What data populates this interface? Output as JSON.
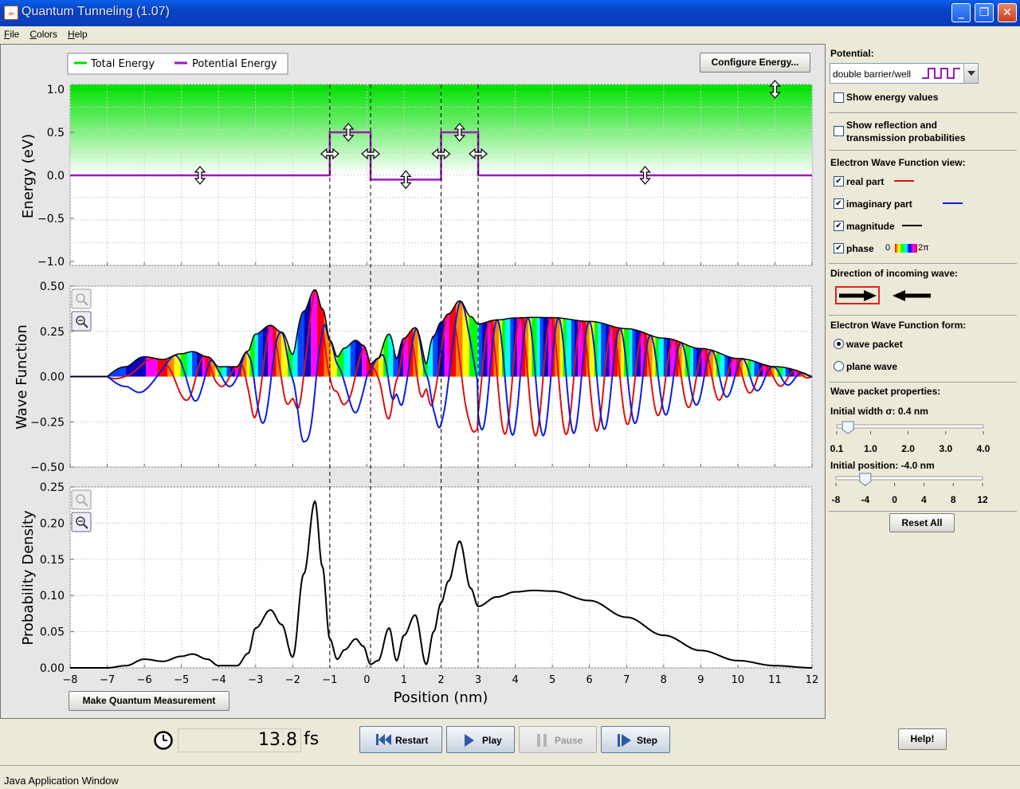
{
  "window": {
    "title": "Quantum Tunneling (1.07)"
  },
  "menu": {
    "items": [
      "File",
      "Colors",
      "Help"
    ]
  },
  "legend": {
    "total_energy": "Total Energy",
    "potential_energy": "Potential Energy"
  },
  "buttons": {
    "configure_energy": "Configure Energy...",
    "make_measurement": "Make Quantum Measurement",
    "reset_all": "Reset All",
    "restart": "Restart",
    "play": "Play",
    "pause": "Pause",
    "step": "Step",
    "help": "Help!"
  },
  "clock": {
    "value": "13.8",
    "unit": "fs"
  },
  "panel": {
    "potential_label": "Potential:",
    "potential_selected": "double barrier/well",
    "show_energy_values": "Show energy values",
    "show_reflection_1": "Show reflection and",
    "show_reflection_2": "transmission probabilities",
    "wf_view_label": "Electron Wave Function view:",
    "real_part": "real part",
    "imaginary_part": "imaginary part",
    "magnitude": "magnitude",
    "phase": "phase",
    "phase_min": "0",
    "phase_max": "2π",
    "direction_label": "Direction of incoming wave:",
    "wf_form_label": "Electron Wave Function form:",
    "wave_packet": "wave packet",
    "plane_wave": "plane wave",
    "packet_props_label": "Wave packet properties:",
    "initial_width_label": "Initial width σ: 0.4 nm",
    "width_ticks": [
      "0.1",
      "1.0",
      "2.0",
      "3.0",
      "4.0"
    ],
    "initial_position_label": "Initial position: -4.0 nm",
    "position_ticks": [
      "-8",
      "-4",
      "0",
      "4",
      "8",
      "12"
    ],
    "width_value": 0.4,
    "position_value": -4.0
  },
  "checks": {
    "show_energy_values": false,
    "show_reflection": false,
    "real_part": true,
    "imaginary_part": true,
    "magnitude": true,
    "phase": true
  },
  "colors": {
    "real": "#e01010",
    "imaginary": "#0a1ee0",
    "magnitude": "#000000",
    "potential": "#9a1bb8",
    "total_energy": "#00e000"
  },
  "status": {
    "text": "Java Application Window"
  },
  "chart_data": [
    {
      "type": "line",
      "ylabel": "Energy (eV)",
      "xlim": [
        -8,
        12
      ],
      "ylim": [
        -1.0,
        1.0
      ],
      "yticks": [
        "1.0",
        "0.5",
        "0.0",
        "−0.5",
        "−1.0"
      ],
      "series": [
        {
          "name": "Total Energy",
          "x": [
            -8,
            12
          ],
          "y": [
            1.0,
            1.0
          ]
        },
        {
          "name": "Potential Energy",
          "x": [
            -8,
            -1,
            -1,
            0.1,
            0.1,
            2,
            2,
            3,
            3,
            12
          ],
          "y": [
            0,
            0,
            0.5,
            0.5,
            -0.05,
            -0.05,
            0.5,
            0.5,
            0,
            0
          ]
        }
      ],
      "region_boundaries": [
        -1,
        0.1,
        2,
        3
      ]
    },
    {
      "type": "line",
      "ylabel": "Wave Function",
      "xlim": [
        -8,
        12
      ],
      "ylim": [
        -0.5,
        0.5
      ],
      "yticks": [
        "0.50",
        "0.25",
        "0.00",
        "−0.25",
        "−0.50"
      ]
    },
    {
      "type": "line",
      "ylabel": "Probability Density",
      "xlabel": "Position (nm)",
      "xlim": [
        -8,
        12
      ],
      "ylim": [
        0,
        0.25
      ],
      "yticks": [
        "0.25",
        "0.20",
        "0.15",
        "0.10",
        "0.05",
        "0.00"
      ],
      "xticks": [
        "−8",
        "−7",
        "−6",
        "−5",
        "−4",
        "−3",
        "−2",
        "−1",
        "0",
        "1",
        "2",
        "3",
        "4",
        "5",
        "6",
        "7",
        "8",
        "9",
        "10",
        "11",
        "12"
      ],
      "series": [
        {
          "name": "Probability Density",
          "x": [
            -8,
            -7,
            -6.5,
            -6,
            -5.5,
            -5,
            -4.7,
            -4.3,
            -4,
            -3.5,
            -3.2,
            -3,
            -2.6,
            -2.3,
            -2,
            -1.7,
            -1.4,
            -1.2,
            -1,
            -0.8,
            -0.6,
            -0.3,
            -0.1,
            0.1,
            0.3,
            0.6,
            0.8,
            1.0,
            1.3,
            1.6,
            1.8,
            2.0,
            2.2,
            2.5,
            2.8,
            3.0,
            3.5,
            4,
            4.5,
            5,
            6,
            7,
            8,
            9,
            10,
            11,
            12
          ],
          "y": [
            0.0,
            0.0,
            0.003,
            0.012,
            0.009,
            0.016,
            0.019,
            0.012,
            0.003,
            0.003,
            0.02,
            0.055,
            0.08,
            0.06,
            0.015,
            0.13,
            0.23,
            0.14,
            0.04,
            0.012,
            0.025,
            0.04,
            0.03,
            0.005,
            0.01,
            0.055,
            0.01,
            0.045,
            0.073,
            0.005,
            0.05,
            0.09,
            0.12,
            0.175,
            0.11,
            0.085,
            0.098,
            0.105,
            0.107,
            0.106,
            0.093,
            0.07,
            0.045,
            0.024,
            0.01,
            0.003,
            0.0
          ]
        }
      ]
    }
  ]
}
